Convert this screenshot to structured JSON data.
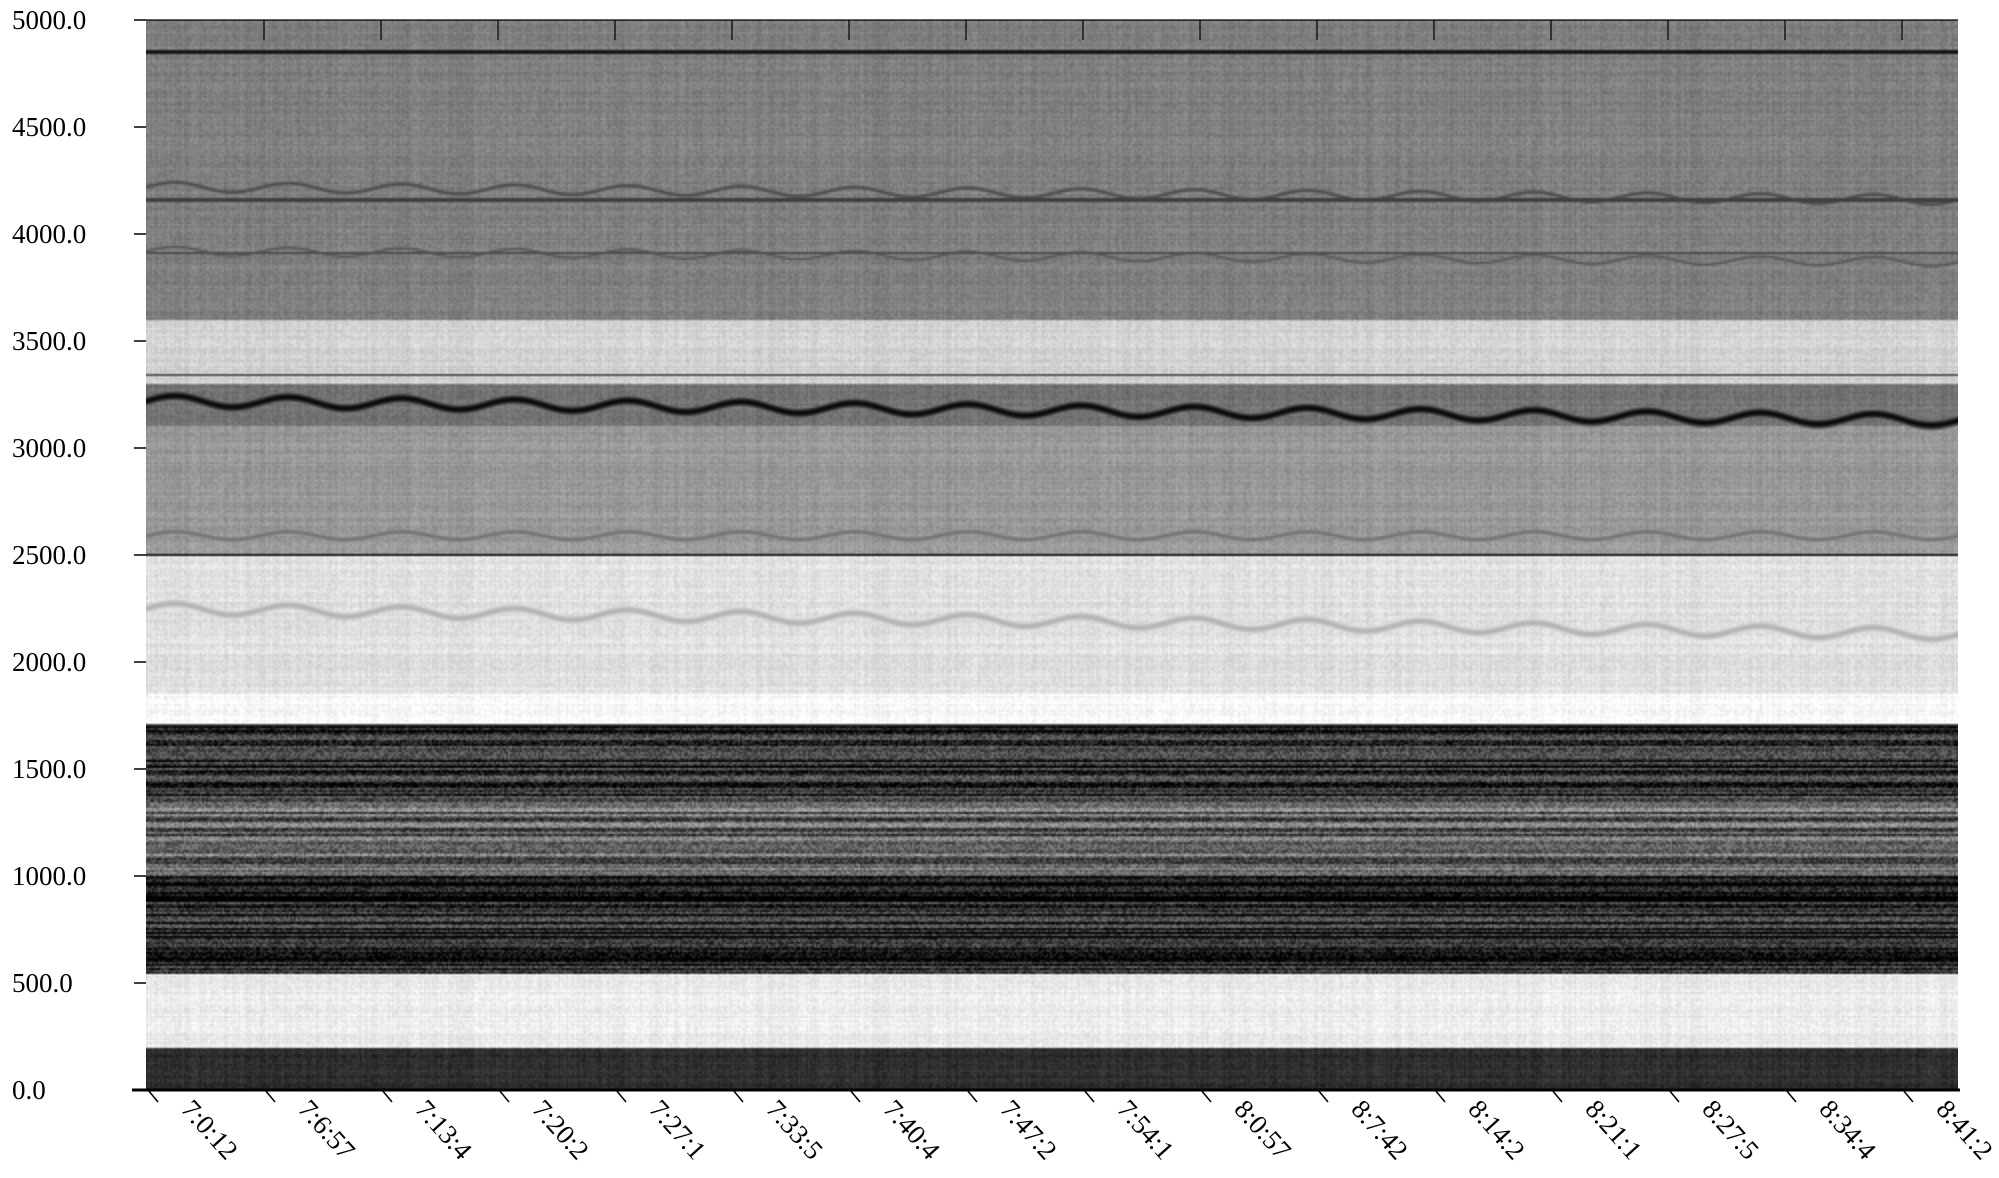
{
  "chart_data": {
    "type": "heatmap",
    "subtype": "spectrogram",
    "colormap": "grayscale-inverted",
    "grid": false,
    "ylim": [
      0,
      5000
    ],
    "y_ticks": [
      0,
      500,
      1000,
      1500,
      2000,
      2500,
      3000,
      3500,
      4000,
      4500,
      5000
    ],
    "y_tick_labels": [
      "0.0",
      "500.0",
      "1000.0",
      "1500.0",
      "2000.0",
      "2500.0",
      "3000.0",
      "3500.0",
      "4000.0",
      "4500.0",
      "5000.0"
    ],
    "x_tick_labels": [
      "7:0:12",
      "7:6:57",
      "7:13:4",
      "7:20:2",
      "7:27:1",
      "7:33:5",
      "7:40:4",
      "7:47:2",
      "7:54:1",
      "8:0:57",
      "8:7:42",
      "8:14:2",
      "8:21:1",
      "8:27:5",
      "8:34:4",
      "8:41:2"
    ],
    "frequency_bands": [
      {
        "from": 0,
        "to": 200,
        "intensity": 0.82
      },
      {
        "from": 200,
        "to": 540,
        "intensity": 0.08
      },
      {
        "from": 540,
        "to": 1000,
        "intensity": 0.85
      },
      {
        "from": 1000,
        "to": 1350,
        "intensity": 0.62
      },
      {
        "from": 1350,
        "to": 1710,
        "intensity": 0.84
      },
      {
        "from": 1710,
        "to": 1850,
        "intensity": 0.02
      },
      {
        "from": 1850,
        "to": 2500,
        "intensity": 0.12
      },
      {
        "from": 2500,
        "to": 3100,
        "intensity": 0.4
      },
      {
        "from": 3100,
        "to": 3300,
        "intensity": 0.55
      },
      {
        "from": 3300,
        "to": 3600,
        "intensity": 0.18
      },
      {
        "from": 3600,
        "to": 5000,
        "intensity": 0.5
      }
    ],
    "ridges": [
      {
        "freq": 3220,
        "trend": -90,
        "ripple": 25,
        "intensity": 0.97,
        "width": 30
      },
      {
        "freq": 4220,
        "trend": -60,
        "ripple": 22,
        "intensity": 0.7,
        "width": 20
      },
      {
        "freq": 3920,
        "trend": -50,
        "ripple": 20,
        "intensity": 0.65,
        "width": 18
      },
      {
        "freq": 2590,
        "trend": 0,
        "ripple": 18,
        "intensity": 0.55,
        "width": 22
      },
      {
        "freq": 2250,
        "trend": -120,
        "ripple": 25,
        "intensity": 0.3,
        "width": 22
      }
    ],
    "lines": [
      {
        "freq": 2500,
        "intensity": 0.92
      },
      {
        "freq": 4850,
        "intensity": 0.9
      },
      {
        "freq": 4160,
        "intensity": 0.75
      },
      {
        "freq": 3910,
        "intensity": 0.7
      },
      {
        "freq": 3340,
        "intensity": 0.7
      },
      {
        "freq": 1700,
        "intensity": 0.75
      }
    ]
  }
}
